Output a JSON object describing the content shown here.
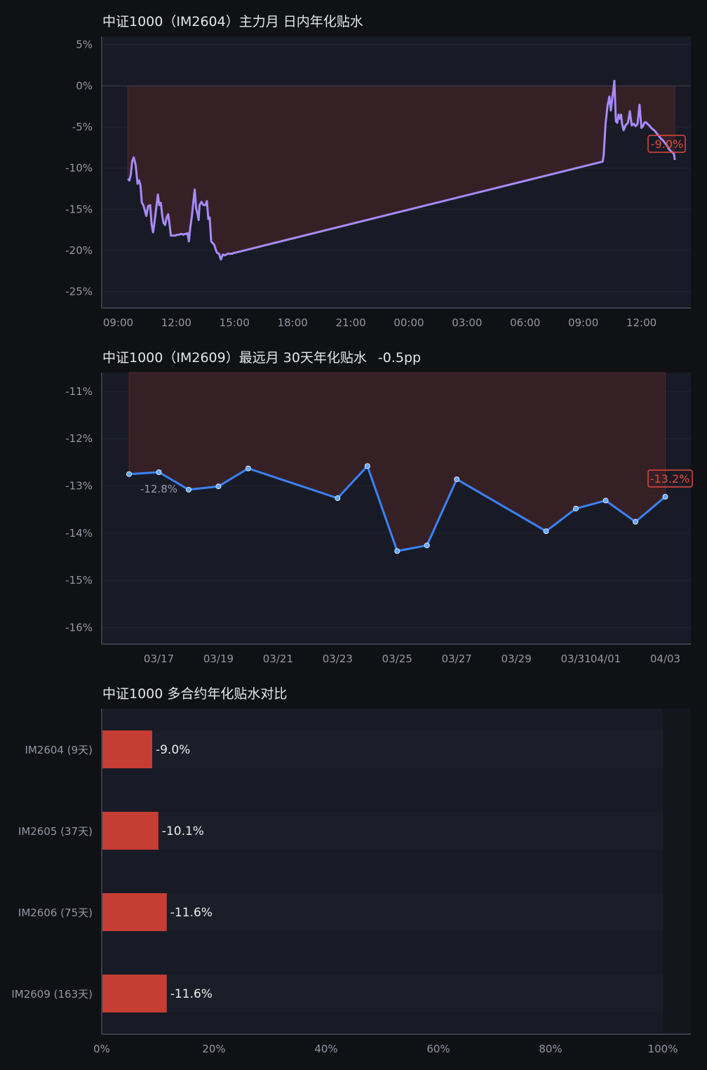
{
  "charts": {
    "intraday_title": "中证1000（IM2604）主力月 日内年化贴水",
    "farmonth_title": "中证1000（IM2609）最远月 30天年化贴水",
    "farmonth_change": "-0.5pp",
    "multi_title": "中证1000 多合约年化贴水对比"
  },
  "colors": {
    "background": "#101114",
    "plot_bg": "#181b25",
    "discount_fill": "#352026",
    "intraday_line": "#a78bfa",
    "farmonth_line": "#3b82f6",
    "bar": "#c53d33",
    "callout": "#e5463c"
  },
  "chart_data": [
    {
      "type": "line",
      "title": "中证1000（IM2604）主力月 日内年化贴水",
      "ylabel": "",
      "xlabel": "",
      "ylim": [
        -27,
        6
      ],
      "yticks": [
        5,
        0,
        -5,
        -10,
        -15,
        -20,
        -25
      ],
      "ytick_labels": [
        "5%",
        "0%",
        "-5%",
        "-10%",
        "-15%",
        "-20%",
        "-25%"
      ],
      "xticks": [
        0,
        3,
        6,
        9,
        12,
        15,
        18,
        21,
        24,
        27
      ],
      "xtick_labels": [
        "09:00",
        "12:00",
        "15:00",
        "18:00",
        "21:00",
        "00:00",
        "03:00",
        "06:00",
        "09:00",
        "12:00"
      ],
      "xlim": [
        -0.85,
        29.55
      ],
      "fill_to_zero": true,
      "zero_line": true,
      "grid": true,
      "last_label": "-9.0%",
      "series": [
        {
          "x": [
            0.5,
            0.58,
            0.65,
            0.72,
            0.8,
            0.9,
            1.0,
            1.08,
            1.15,
            1.22,
            1.3,
            1.45,
            1.55,
            1.65,
            1.72,
            1.8,
            1.88,
            1.95,
            2.05,
            2.12,
            2.2,
            2.28,
            2.35,
            2.42,
            2.5,
            2.58,
            2.65,
            2.72,
            2.8,
            2.9,
            2.95,
            3.05,
            3.15,
            3.22,
            3.3,
            3.35,
            3.43,
            3.5,
            3.58,
            3.65,
            3.72,
            3.8,
            3.87,
            3.95,
            4.02,
            4.1,
            4.15,
            4.2,
            4.3,
            4.4,
            4.5,
            4.58,
            4.65,
            4.72,
            4.8,
            4.87,
            4.95,
            5.02,
            5.1,
            5.2,
            5.3,
            5.4,
            5.5,
            5.58,
            5.65,
            5.72,
            5.8,
            5.9,
            5.95,
            6.0,
            25.0,
            25.05,
            25.15,
            25.25,
            25.35,
            25.42,
            25.5,
            25.55,
            25.6,
            25.68,
            25.75,
            25.82,
            25.9,
            25.95,
            26.0,
            26.08,
            26.18,
            26.3,
            26.4,
            26.5,
            26.6,
            26.7,
            26.8,
            26.9,
            27.0,
            27.08,
            27.15,
            27.22,
            27.3,
            27.4,
            27.5,
            27.6,
            27.7,
            27.8,
            27.9,
            28.0,
            28.1,
            28.2,
            28.3,
            28.35,
            28.4,
            28.5,
            28.6,
            28.68,
            28.72
          ],
          "y": [
            -11.3,
            -11.5,
            -10.8,
            -9.2,
            -8.7,
            -9.6,
            -11.9,
            -11.5,
            -12.1,
            -14.2,
            -14.5,
            -15.8,
            -14.6,
            -14.5,
            -16.7,
            -17.8,
            -16.5,
            -15.1,
            -13.2,
            -14.5,
            -14.2,
            -15.9,
            -16.7,
            -16.9,
            -16.0,
            -15.6,
            -16.8,
            -18.2,
            -18.2,
            -18.2,
            -18.2,
            -18.1,
            -18.1,
            -18.0,
            -18.0,
            -18.1,
            -18.0,
            -18.0,
            -17.9,
            -18.9,
            -17.2,
            -15.9,
            -14.3,
            -12.6,
            -14.9,
            -15.6,
            -16.3,
            -14.5,
            -14.1,
            -14.5,
            -14.5,
            -14.0,
            -16.2,
            -16.0,
            -18.9,
            -19.1,
            -19.3,
            -19.8,
            -20.3,
            -20.4,
            -21.1,
            -20.5,
            -20.6,
            -20.5,
            -20.4,
            -20.4,
            -20.4,
            -20.4,
            -20.3,
            -20.3,
            -9.2,
            -8.4,
            -4.6,
            -2.4,
            -1.3,
            -3.0,
            -1.4,
            -0.6,
            0.6,
            -4.3,
            -4.5,
            -3.5,
            -4.0,
            -3.5,
            -4.6,
            -5.4,
            -4.8,
            -4.5,
            -3.1,
            -4.8,
            -4.6,
            -4.9,
            -4.6,
            -2.3,
            -5.1,
            -4.9,
            -4.5,
            -4.4,
            -4.6,
            -4.8,
            -5.1,
            -5.3,
            -5.5,
            -5.8,
            -6.1,
            -6.4,
            -6.6,
            -6.9,
            -7.2,
            -7.4,
            -7.6,
            -7.9,
            -8.1,
            -8.3,
            -9.0
          ]
        }
      ]
    },
    {
      "type": "line",
      "title": "中证1000（IM2609）最远月 30天年化贴水",
      "ylabel": "",
      "xlabel": "",
      "ylim": [
        -16.35,
        -10.6
      ],
      "yticks": [
        -11,
        -12,
        -13,
        -14,
        -15,
        -16
      ],
      "ytick_labels": [
        "-11%",
        "-12%",
        "-13%",
        "-14%",
        "-15%",
        "-16%"
      ],
      "xticks": [
        1,
        3,
        5,
        7,
        9,
        11,
        13,
        15,
        16,
        18
      ],
      "xtick_labels": [
        "03/17",
        "03/19",
        "03/21",
        "03/23",
        "03/25",
        "03/27",
        "03/29",
        "03/31",
        "04/01",
        "04/03"
      ],
      "xlim": [
        -0.92,
        18.86
      ],
      "fill_to_top": true,
      "grid": true,
      "first_label": "-12.8%",
      "last_label": "-13.2%",
      "series": [
        {
          "x": [
            0,
            1,
            2,
            3,
            4,
            7,
            8,
            9,
            10,
            11,
            14,
            15,
            16,
            17,
            18
          ],
          "y": [
            -12.75,
            -12.71,
            -13.08,
            -13.01,
            -12.63,
            -13.26,
            -12.58,
            -14.38,
            -14.26,
            -12.86,
            -13.96,
            -13.48,
            -13.31,
            -13.76,
            -13.23
          ]
        }
      ]
    },
    {
      "type": "bar",
      "orientation": "horizontal",
      "title": "中证1000 多合约年化贴水对比",
      "ylabel": "",
      "xlabel": "",
      "xlim": [
        0,
        105
      ],
      "xticks": [
        0,
        20,
        40,
        60,
        80,
        100
      ],
      "xtick_labels": [
        "0%",
        "20%",
        "40%",
        "60%",
        "80%",
        "100%"
      ],
      "categories": [
        "IM2604 (9天)",
        "IM2605 (37天)",
        "IM2606 (75天)",
        "IM2609 (163天)"
      ],
      "values": [
        9.0,
        10.1,
        11.6,
        11.6
      ],
      "value_labels": [
        "-9.0%",
        "-10.1%",
        "-11.6%",
        "-11.6%"
      ]
    }
  ]
}
